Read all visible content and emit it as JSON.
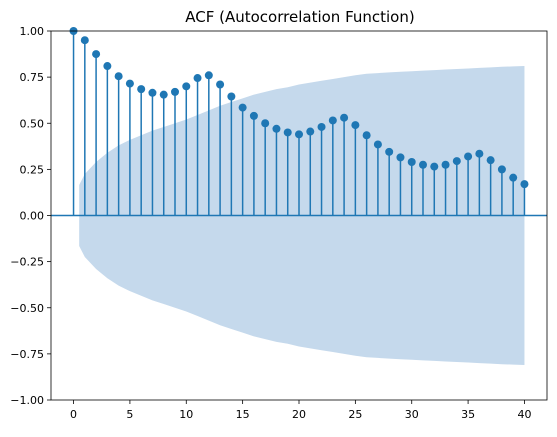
{
  "chart_data": {
    "type": "line",
    "title": "ACF (Autocorrelation Function)",
    "xlabel": "",
    "ylabel": "",
    "xlim": [
      -2,
      42
    ],
    "ylim": [
      -1.0,
      1.0
    ],
    "x_ticks": [
      0,
      5,
      10,
      15,
      20,
      25,
      30,
      35,
      40
    ],
    "x_tick_labels": [
      "0",
      "5",
      "10",
      "15",
      "20",
      "25",
      "30",
      "35",
      "40"
    ],
    "y_ticks": [
      1.0,
      0.75,
      0.5,
      0.25,
      0.0,
      -0.25,
      -0.5,
      -0.75,
      -1.0
    ],
    "y_tick_labels": [
      "1.00",
      "0.75",
      "0.50",
      "0.25",
      "0.00",
      "−0.25",
      "−0.50",
      "−0.75",
      "−1.00"
    ],
    "grid": false,
    "lags": [
      0,
      1,
      2,
      3,
      4,
      5,
      6,
      7,
      8,
      9,
      10,
      11,
      12,
      13,
      14,
      15,
      16,
      17,
      18,
      19,
      20,
      21,
      22,
      23,
      24,
      25,
      26,
      27,
      28,
      29,
      30,
      31,
      32,
      33,
      34,
      35,
      36,
      37,
      38,
      39,
      40
    ],
    "acf": [
      1.0,
      0.95,
      0.875,
      0.81,
      0.755,
      0.715,
      0.685,
      0.665,
      0.655,
      0.67,
      0.7,
      0.745,
      0.76,
      0.71,
      0.645,
      0.585,
      0.54,
      0.5,
      0.47,
      0.45,
      0.44,
      0.455,
      0.48,
      0.515,
      0.53,
      0.49,
      0.435,
      0.385,
      0.345,
      0.315,
      0.29,
      0.275,
      0.265,
      0.275,
      0.295,
      0.32,
      0.335,
      0.3,
      0.25,
      0.205,
      0.17
    ],
    "confidence_band": {
      "lags": [
        0,
        1,
        2,
        3,
        4,
        5,
        6,
        7,
        8,
        9,
        10,
        11,
        12,
        13,
        14,
        15,
        16,
        17,
        18,
        19,
        20,
        21,
        22,
        23,
        24,
        25,
        26,
        27,
        28,
        29,
        30,
        31,
        32,
        33,
        34,
        35,
        36,
        37,
        38,
        39,
        40
      ],
      "upper": [
        0.165,
        0.225,
        0.29,
        0.34,
        0.38,
        0.41,
        0.435,
        0.46,
        0.48,
        0.5,
        0.52,
        0.545,
        0.57,
        0.595,
        0.615,
        0.635,
        0.655,
        0.67,
        0.685,
        0.695,
        0.71,
        0.72,
        0.73,
        0.74,
        0.75,
        0.76,
        0.768,
        0.772,
        0.776,
        0.779,
        0.782,
        0.785,
        0.788,
        0.791,
        0.794,
        0.797,
        0.8,
        0.803,
        0.806,
        0.808,
        0.81
      ],
      "lower": [
        -0.165,
        -0.225,
        -0.29,
        -0.34,
        -0.38,
        -0.41,
        -0.435,
        -0.46,
        -0.48,
        -0.5,
        -0.52,
        -0.545,
        -0.57,
        -0.595,
        -0.615,
        -0.635,
        -0.655,
        -0.67,
        -0.685,
        -0.695,
        -0.71,
        -0.72,
        -0.73,
        -0.74,
        -0.75,
        -0.76,
        -0.768,
        -0.772,
        -0.776,
        -0.779,
        -0.782,
        -0.785,
        -0.788,
        -0.791,
        -0.794,
        -0.797,
        -0.8,
        -0.803,
        -0.806,
        -0.808,
        -0.81
      ],
      "color": "#c5d9ec"
    },
    "series": [
      {
        "values_key": "acf",
        "color": "#1f77b4"
      }
    ],
    "zero_line_color": "#1f77b4"
  }
}
